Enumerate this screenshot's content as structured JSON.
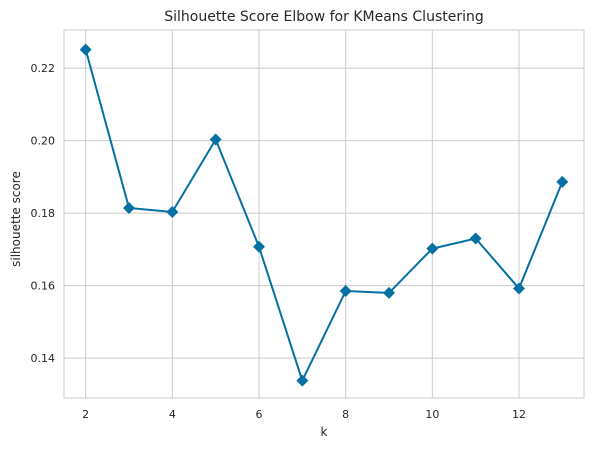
{
  "chart_data": {
    "type": "line",
    "title": "Silhouette Score Elbow for KMeans Clustering",
    "xlabel": "k",
    "ylabel": "silhouette score",
    "xlim": [
      1.5,
      13.5
    ],
    "ylim": [
      0.129,
      0.2305
    ],
    "xticks": [
      2,
      4,
      6,
      8,
      10,
      12
    ],
    "yticks": [
      0.14,
      0.16,
      0.18,
      0.2,
      0.22
    ],
    "ytick_labels": [
      "0.14",
      "0.16",
      "0.18",
      "0.20",
      "0.22"
    ],
    "grid": true,
    "marker": "diamond",
    "color": "#0570a3",
    "series": [
      {
        "x": [
          2,
          3,
          4,
          5,
          6,
          7,
          8,
          9,
          10,
          11,
          12,
          13
        ],
        "values": [
          0.2251,
          0.1814,
          0.1803,
          0.2003,
          0.1707,
          0.1338,
          0.1585,
          0.158,
          0.1702,
          0.173,
          0.1592,
          0.1886
        ]
      }
    ]
  }
}
